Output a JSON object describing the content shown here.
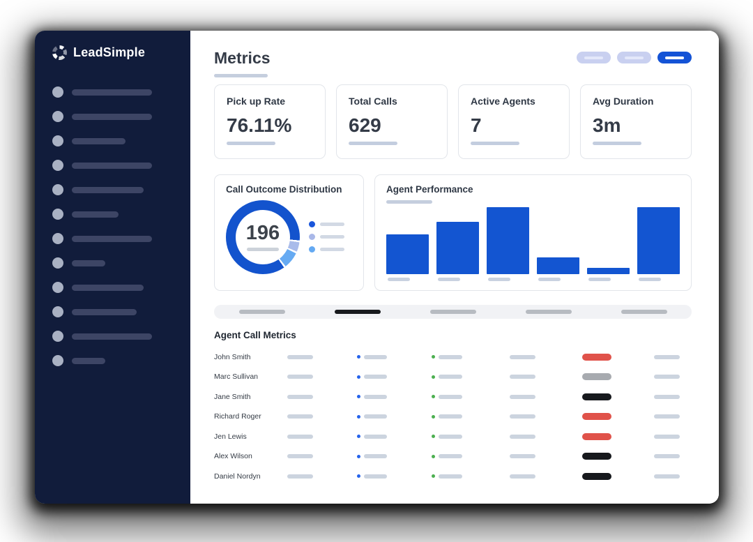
{
  "colors": {
    "sidebar_bg": "#111c3b",
    "sidebar_skeleton_circle": "#a9b1c3",
    "sidebar_skeleton_bar": "#3d4565",
    "accent_blue": "#1355d1",
    "pill_active_blue": "#1453d6",
    "pill_inactive": "#c9d0f0",
    "skeleton_light": "#c3cddf",
    "strip_bg": "#f1f2f5",
    "strip_bar": "#b7bbc1",
    "strip_bar_active": "#17191d",
    "table_dot_blue": "#2563eb",
    "table_dot_green": "#4caf50",
    "pill_red": "#e0524a",
    "pill_gray": "#a7aaaf",
    "pill_black": "#17191d"
  },
  "sidebar": {
    "logo_text": "LeadSimple",
    "skeleton_item_widths": [
      115,
      115,
      77,
      115,
      103,
      67,
      115,
      48,
      103,
      93,
      115,
      48
    ]
  },
  "header": {
    "title": "Metrics",
    "view_pills": [
      {
        "state": "inactive"
      },
      {
        "state": "inactive"
      },
      {
        "state": "active"
      }
    ]
  },
  "metric_cards": [
    {
      "label": "Pick up Rate",
      "value": "76.11%"
    },
    {
      "label": "Total Calls",
      "value": "629"
    },
    {
      "label": "Active Agents",
      "value": "7"
    },
    {
      "label": "Avg Duration",
      "value": "3m"
    }
  ],
  "chart_data": [
    {
      "type": "pie",
      "variant": "donut",
      "title": "Call Outcome Distribution",
      "center_value": "196",
      "gap_color": "#ffffff",
      "segments": [
        {
          "name": "primary",
          "color": "#1353cd",
          "start_deg": 0,
          "end_deg": 95
        },
        {
          "name": "secondary",
          "color": "#a9bbea",
          "start_deg": 98,
          "end_deg": 113
        },
        {
          "name": "tertiary",
          "color": "#66aaf2",
          "start_deg": 116,
          "end_deg": 142
        },
        {
          "name": "primary",
          "color": "#1353cd",
          "start_deg": 145,
          "end_deg": 360
        }
      ],
      "legend": [
        {
          "dot_color": "#1a56db"
        },
        {
          "dot_color": "#a9b8e8"
        },
        {
          "dot_color": "#64a9f2"
        }
      ]
    },
    {
      "type": "bar",
      "title": "Agent Performance",
      "values_percent_of_max": [
        53,
        70,
        100,
        22,
        8,
        100
      ],
      "bar_color": "#1355d1",
      "x_tick_labels": "skeleton-placeholders",
      "grid": false,
      "legend_position": "none"
    }
  ],
  "pagination_strip": {
    "items": [
      {
        "state": "inactive"
      },
      {
        "state": "active"
      },
      {
        "state": "inactive"
      },
      {
        "state": "inactive"
      },
      {
        "state": "inactive"
      }
    ]
  },
  "table": {
    "title": "Agent Call Metrics",
    "rows": [
      {
        "name": "John Smith",
        "status_pill": "red"
      },
      {
        "name": "Marc Sullivan",
        "status_pill": "gray"
      },
      {
        "name": "Jane Smith",
        "status_pill": "black"
      },
      {
        "name": "Richard Roger",
        "status_pill": "red"
      },
      {
        "name": "Jen Lewis",
        "status_pill": "red"
      },
      {
        "name": "Alex Wilson",
        "status_pill": "black"
      },
      {
        "name": "Daniel Nordyn",
        "status_pill": "black"
      }
    ]
  }
}
